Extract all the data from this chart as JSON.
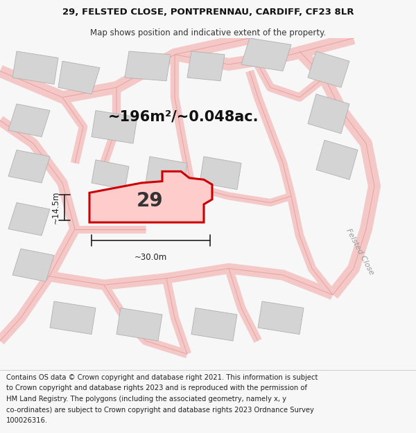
{
  "title_line1": "29, FELSTED CLOSE, PONTPRENNAU, CARDIFF, CF23 8LR",
  "title_line2": "Map shows position and indicative extent of the property.",
  "area_text": "~196m²/~0.048ac.",
  "number_label": "29",
  "dim_width": "~30.0m",
  "dim_height": "~14.5m",
  "footer_lines": [
    "Contains OS data © Crown copyright and database right 2021. This information is subject",
    "to Crown copyright and database rights 2023 and is reproduced with the permission of",
    "HM Land Registry. The polygons (including the associated geometry, namely x, y",
    "co-ordinates) are subject to Crown copyright and database rights 2023 Ordnance Survey",
    "100026316."
  ],
  "bg_color": "#f7f7f7",
  "map_bg": "#ffffff",
  "plot_fill": "#ffcccc",
  "plot_edge": "#cc0000",
  "road_fill": "#f5c8c8",
  "road_edge": "#e8a0a0",
  "building_fill": "#d4d4d4",
  "building_edge": "#b0b0b0",
  "dim_color": "#222222",
  "road_label_color": "#999999",
  "title_fontsize": 9.5,
  "subtitle_fontsize": 8.5,
  "area_fontsize": 15,
  "number_fontsize": 20,
  "footer_fontsize": 7.2,
  "dim_fontsize": 8.5,
  "road_label_fontsize": 8
}
